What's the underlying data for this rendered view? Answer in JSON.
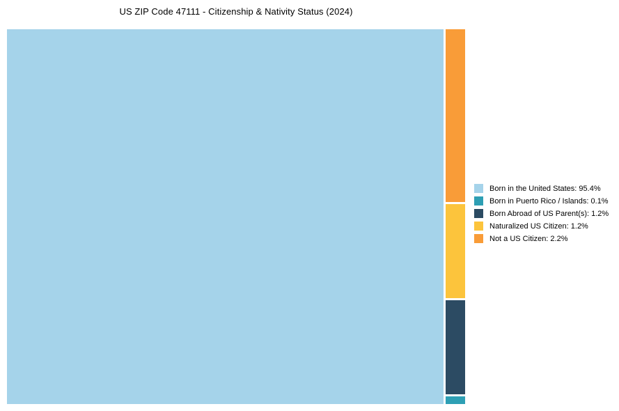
{
  "page": {
    "title": "US ZIP Code 47111 - Citizenship & Nativity Status (2024)"
  },
  "chart_data": {
    "type": "treemap",
    "title": "US ZIP Code 47111 - Citizenship & Nativity Status (2024)",
    "unit": "%",
    "legend_position": "right",
    "background_color": "#ffffff",
    "items": [
      {
        "label": "Born in the United States",
        "value": 95.4,
        "color": "#A5D3EA",
        "legend_label": "Born in the United States: 95.4%"
      },
      {
        "label": "Born in Puerto Rico / Islands",
        "value": 0.1,
        "color": "#2E9FB4",
        "legend_label": "Born in Puerto Rico / Islands: 0.1%"
      },
      {
        "label": "Born Abroad of US Parent(s)",
        "value": 1.2,
        "color": "#2C4B63",
        "legend_label": "Born Abroad of US Parent(s): 1.2%"
      },
      {
        "label": "Naturalized US Citizen",
        "value": 1.2,
        "color": "#FCC43C",
        "legend_label": "Naturalized US Citizen: 1.2%"
      },
      {
        "label": "Not a US Citizen",
        "value": 2.2,
        "color": "#F99C38",
        "legend_label": "Not a US Citizen: 2.2%"
      }
    ],
    "side_column_order_top_to_bottom": [
      "Not a US Citizen",
      "Naturalized US Citizen",
      "Born Abroad of US Parent(s)",
      "Born in Puerto Rico / Islands"
    ]
  }
}
